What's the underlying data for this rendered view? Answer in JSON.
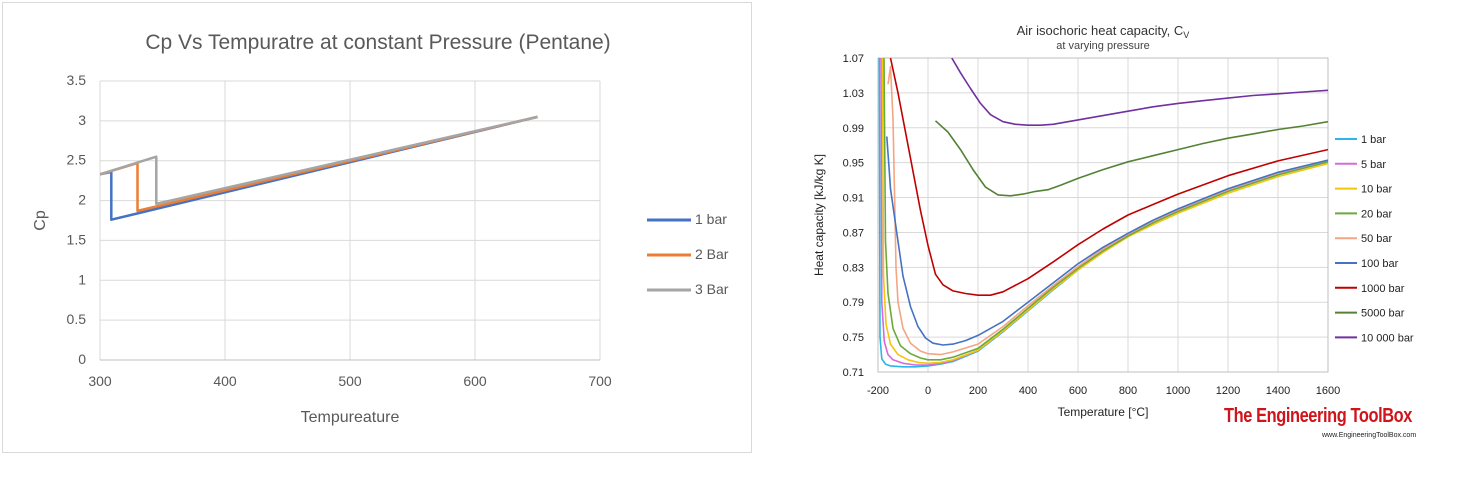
{
  "chart_data": [
    {
      "type": "line",
      "title": "Cp Vs Tempuratre at constant Pressure (Pentane)",
      "xlabel": "Tempureature",
      "ylabel": "Cp",
      "xlim": [
        300,
        700
      ],
      "ylim": [
        0,
        3.5
      ],
      "xticks": [
        "300",
        "400",
        "500",
        "600",
        "700"
      ],
      "yticks": [
        "0",
        "0.5",
        "1",
        "1.5",
        "2",
        "2.5",
        "3",
        "3.5"
      ],
      "grid": true,
      "legend": "right",
      "series": [
        {
          "name": "1 bar",
          "color": "#4472c4",
          "x": [
            300,
            309,
            309,
            650
          ],
          "y": [
            2.33,
            2.36,
            1.76,
            3.05
          ]
        },
        {
          "name": "2 Bar",
          "color": "#ed7d31",
          "x": [
            300,
            330,
            330,
            650
          ],
          "y": [
            2.33,
            2.47,
            1.87,
            3.05
          ]
        },
        {
          "name": "3 Bar",
          "color": "#a5a5a5",
          "x": [
            300,
            345,
            345,
            650
          ],
          "y": [
            2.33,
            2.55,
            1.96,
            3.05
          ]
        }
      ]
    },
    {
      "type": "line",
      "title": "Air isochoric heat capacity, C",
      "title_sub": "V",
      "subtitle": "at varying pressure",
      "xlabel": "Temperature [°C]",
      "ylabel": "Heat capacity [kJ/kg K]",
      "xlim": [
        -200,
        1600
      ],
      "ylim": [
        0.71,
        1.07
      ],
      "xticks": [
        "-200",
        "0",
        "200",
        "400",
        "600",
        "800",
        "1000",
        "1200",
        "1400",
        "1600"
      ],
      "yticks": [
        "0.71",
        "0.75",
        "0.79",
        "0.83",
        "0.87",
        "0.91",
        "0.95",
        "0.99",
        "1.03",
        "1.07"
      ],
      "grid": true,
      "legend": "right",
      "series": [
        {
          "name": "1 bar",
          "color": "#2cb5e8",
          "x": [
            -195,
            -192,
            -185,
            -170,
            -150,
            -100,
            -50,
            0,
            50,
            100,
            200,
            300,
            400,
            500,
            600,
            700,
            800,
            900,
            1000,
            1200,
            1400,
            1600
          ],
          "y": [
            1.07,
            0.75,
            0.725,
            0.719,
            0.717,
            0.716,
            0.716,
            0.717,
            0.719,
            0.722,
            0.734,
            0.756,
            0.78,
            0.804,
            0.827,
            0.848,
            0.866,
            0.881,
            0.895,
            0.918,
            0.937,
            0.951
          ]
        },
        {
          "name": "5 bar",
          "color": "#d46bd8",
          "x": [
            -188,
            -185,
            -175,
            -160,
            -140,
            -100,
            -50,
            0,
            50,
            100,
            200,
            300,
            400,
            500,
            600,
            700,
            800,
            900,
            1000,
            1200,
            1400,
            1600
          ],
          "y": [
            1.07,
            0.79,
            0.745,
            0.73,
            0.724,
            0.72,
            0.718,
            0.718,
            0.72,
            0.723,
            0.735,
            0.757,
            0.781,
            0.805,
            0.828,
            0.849,
            0.866,
            0.881,
            0.895,
            0.918,
            0.937,
            0.951
          ]
        },
        {
          "name": "10 bar",
          "color": "#f2c50f",
          "x": [
            -182,
            -178,
            -168,
            -150,
            -120,
            -80,
            -40,
            0,
            50,
            100,
            200,
            300,
            400,
            500,
            600,
            700,
            800,
            900,
            1000,
            1200,
            1400,
            1600
          ],
          "y": [
            1.07,
            0.82,
            0.765,
            0.742,
            0.73,
            0.724,
            0.721,
            0.72,
            0.721,
            0.724,
            0.735,
            0.757,
            0.781,
            0.805,
            0.827,
            0.847,
            0.865,
            0.879,
            0.892,
            0.915,
            0.934,
            0.949
          ]
        },
        {
          "name": "20 bar",
          "color": "#6aaa3a",
          "x": [
            -176,
            -170,
            -160,
            -140,
            -110,
            -70,
            -30,
            0,
            50,
            100,
            200,
            300,
            400,
            500,
            600,
            700,
            800,
            900,
            1000,
            1200,
            1400,
            1600
          ],
          "y": [
            1.07,
            0.86,
            0.8,
            0.76,
            0.74,
            0.731,
            0.726,
            0.724,
            0.724,
            0.727,
            0.737,
            0.759,
            0.783,
            0.807,
            0.829,
            0.849,
            0.866,
            0.881,
            0.894,
            0.917,
            0.936,
            0.951
          ]
        },
        {
          "name": "50 bar",
          "color": "#f4a582",
          "x": [
            -160,
            -150,
            -140,
            -133,
            -128,
            -120,
            -100,
            -70,
            -30,
            0,
            50,
            100,
            200,
            300,
            400,
            500,
            600,
            700,
            800,
            900,
            1000,
            1200,
            1400,
            1600
          ],
          "y": [
            1.04,
            1.06,
            1.0,
            0.9,
            0.83,
            0.79,
            0.76,
            0.743,
            0.734,
            0.731,
            0.73,
            0.733,
            0.742,
            0.762,
            0.786,
            0.809,
            0.831,
            0.851,
            0.868,
            0.883,
            0.896,
            0.919,
            0.938,
            0.953
          ]
        },
        {
          "name": "100 bar",
          "color": "#4472c4",
          "x": [
            -165,
            -155,
            -150,
            -140,
            -120,
            -100,
            -70,
            -40,
            -10,
            20,
            60,
            100,
            150,
            200,
            300,
            400,
            500,
            600,
            700,
            800,
            900,
            1000,
            1200,
            1400,
            1600
          ],
          "y": [
            0.98,
            0.94,
            0.92,
            0.9,
            0.86,
            0.82,
            0.785,
            0.762,
            0.749,
            0.743,
            0.741,
            0.742,
            0.746,
            0.752,
            0.768,
            0.79,
            0.812,
            0.834,
            0.853,
            0.869,
            0.884,
            0.897,
            0.92,
            0.939,
            0.953
          ]
        },
        {
          "name": "1000 bar",
          "color": "#c00000",
          "x": [
            -150,
            -120,
            -90,
            -60,
            -30,
            0,
            30,
            60,
            100,
            150,
            200,
            250,
            300,
            400,
            500,
            600,
            700,
            800,
            900,
            1000,
            1200,
            1400,
            1600
          ],
          "y": [
            1.07,
            1.03,
            0.985,
            0.94,
            0.895,
            0.855,
            0.822,
            0.81,
            0.803,
            0.8,
            0.798,
            0.798,
            0.802,
            0.817,
            0.836,
            0.856,
            0.874,
            0.89,
            0.902,
            0.914,
            0.935,
            0.952,
            0.965
          ]
        },
        {
          "name": "5000 bar",
          "color": "#548235",
          "x": [
            30,
            80,
            130,
            180,
            230,
            280,
            330,
            380,
            430,
            480,
            530,
            600,
            700,
            800,
            900,
            1000,
            1100,
            1200,
            1300,
            1400,
            1500,
            1600
          ],
          "y": [
            0.998,
            0.985,
            0.965,
            0.942,
            0.922,
            0.913,
            0.912,
            0.914,
            0.917,
            0.919,
            0.924,
            0.932,
            0.942,
            0.951,
            0.958,
            0.965,
            0.972,
            0.978,
            0.983,
            0.988,
            0.992,
            0.997
          ]
        },
        {
          "name": "10 000 bar",
          "color": "#7030a0",
          "x": [
            95,
            130,
            170,
            210,
            250,
            300,
            350,
            400,
            450,
            500,
            600,
            700,
            800,
            900,
            1000,
            1100,
            1200,
            1300,
            1400,
            1500,
            1600
          ],
          "y": [
            1.07,
            1.053,
            1.035,
            1.018,
            1.005,
            0.997,
            0.994,
            0.993,
            0.993,
            0.994,
            0.999,
            1.004,
            1.009,
            1.014,
            1.018,
            1.021,
            1.024,
            1.027,
            1.029,
            1.031,
            1.033
          ]
        }
      ]
    }
  ],
  "watermark": {
    "brand": "The Engineering ToolBox",
    "url": "www.EngineeringToolBox.com"
  }
}
